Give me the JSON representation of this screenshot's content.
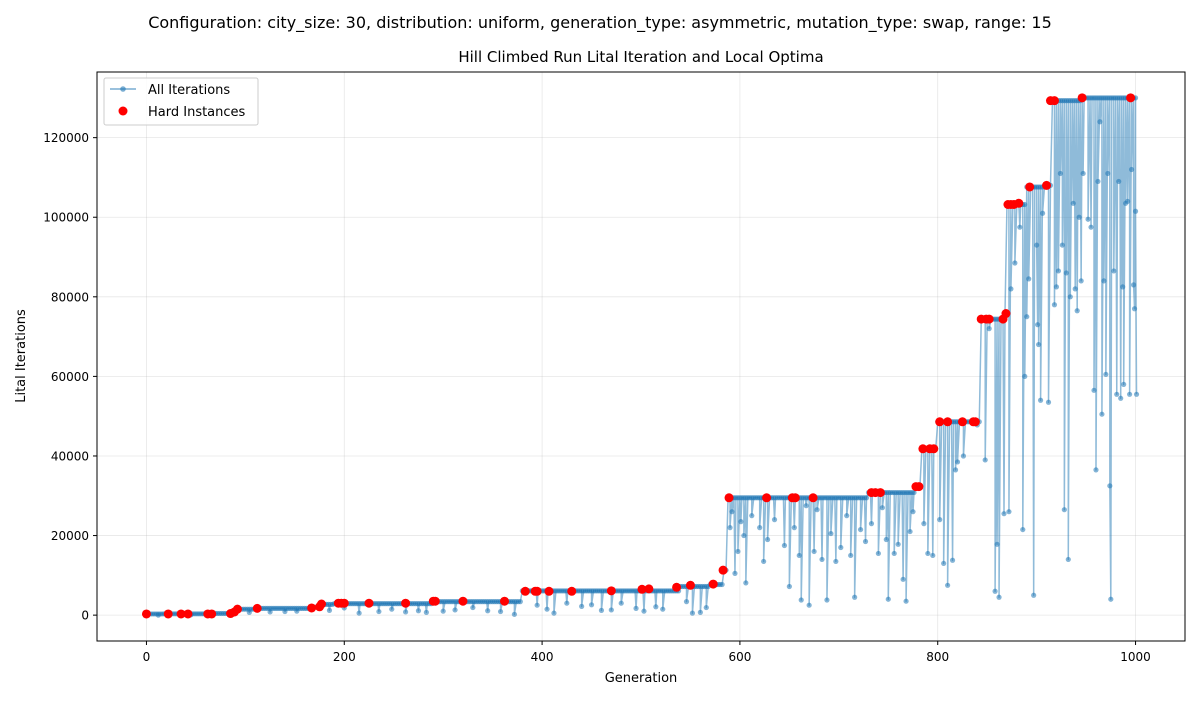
{
  "figure": {
    "suptitle": "Configuration: city_size: 30, distribution: uniform, generation_type: asymmetric, mutation_type: swap, range: 15"
  },
  "chart_data": {
    "type": "line",
    "title": "Hill Climbed Run Lital Iteration and Local Optima",
    "xlabel": "Generation",
    "ylabel": "Lital Iterations",
    "xlim": [
      -50,
      1050
    ],
    "ylim": [
      -6500,
      136500
    ],
    "xticks": [
      0,
      200,
      400,
      600,
      800,
      1000
    ],
    "yticks": [
      0,
      20000,
      40000,
      60000,
      80000,
      100000,
      120000
    ],
    "grid": true,
    "legend_position": "top-left",
    "colors": {
      "line": "#1f77b4",
      "hard": "#ff0000"
    },
    "series": [
      {
        "name": "All Iterations",
        "style": "line-with-markers",
        "plateaus": [
          [
            0,
            18,
            300
          ],
          [
            18,
            60,
            330
          ],
          [
            60,
            85,
            420
          ],
          [
            85,
            92,
            700
          ],
          [
            92,
            110,
            1500
          ],
          [
            110,
            165,
            1700
          ],
          [
            165,
            178,
            2000
          ],
          [
            178,
            190,
            2700
          ],
          [
            190,
            260,
            2900
          ],
          [
            260,
            290,
            2900
          ],
          [
            290,
            380,
            3400
          ],
          [
            380,
            540,
            6100
          ],
          [
            540,
            570,
            7200
          ],
          [
            570,
            583,
            7700
          ],
          [
            583,
            588,
            11300
          ],
          [
            588,
            730,
            29500
          ],
          [
            730,
            778,
            30800
          ],
          [
            778,
            783,
            32300
          ],
          [
            783,
            800,
            41800
          ],
          [
            800,
            843,
            48600
          ],
          [
            843,
            868,
            74400
          ],
          [
            868,
            870,
            75800
          ],
          [
            870,
            890,
            103200
          ],
          [
            890,
            908,
            107600
          ],
          [
            908,
            915,
            108000
          ],
          [
            915,
            945,
            129300
          ],
          [
            945,
            1000,
            130000
          ]
        ],
        "dips": [
          [
            12,
            0
          ],
          [
            45,
            100
          ],
          [
            104,
            700
          ],
          [
            125,
            800
          ],
          [
            140,
            900
          ],
          [
            152,
            1000
          ],
          [
            185,
            1200
          ],
          [
            200,
            1800
          ],
          [
            215,
            500
          ],
          [
            235,
            900
          ],
          [
            248,
            1500
          ],
          [
            262,
            800
          ],
          [
            275,
            1100
          ],
          [
            283,
            700
          ],
          [
            300,
            1000
          ],
          [
            312,
            1300
          ],
          [
            330,
            1900
          ],
          [
            345,
            1100
          ],
          [
            358,
            900
          ],
          [
            372,
            200
          ],
          [
            395,
            2500
          ],
          [
            405,
            1500
          ],
          [
            412,
            500
          ],
          [
            425,
            3000
          ],
          [
            440,
            2200
          ],
          [
            450,
            2600
          ],
          [
            460,
            1200
          ],
          [
            470,
            1300
          ],
          [
            480,
            3000
          ],
          [
            495,
            1700
          ],
          [
            503,
            1000
          ],
          [
            515,
            2100
          ],
          [
            522,
            1500
          ],
          [
            546,
            3400
          ],
          [
            552,
            500
          ],
          [
            560,
            700
          ],
          [
            566,
            1900
          ],
          [
            590,
            22000
          ],
          [
            592,
            26000
          ],
          [
            595,
            10500
          ],
          [
            598,
            16000
          ],
          [
            601,
            23500
          ],
          [
            604,
            20000
          ],
          [
            606,
            8100
          ],
          [
            612,
            25000
          ],
          [
            620,
            22000
          ],
          [
            624,
            13500
          ],
          [
            628,
            19000
          ],
          [
            635,
            24000
          ],
          [
            645,
            17500
          ],
          [
            650,
            7200
          ],
          [
            655,
            22000
          ],
          [
            660,
            15000
          ],
          [
            662,
            3800
          ],
          [
            667,
            27500
          ],
          [
            670,
            2500
          ],
          [
            675,
            16000
          ],
          [
            678,
            26500
          ],
          [
            683,
            14000
          ],
          [
            688,
            3800
          ],
          [
            692,
            20500
          ],
          [
            697,
            13500
          ],
          [
            702,
            17000
          ],
          [
            708,
            25000
          ],
          [
            712,
            15000
          ],
          [
            716,
            4500
          ],
          [
            722,
            21500
          ],
          [
            727,
            18500
          ],
          [
            733,
            23000
          ],
          [
            740,
            15500
          ],
          [
            744,
            27000
          ],
          [
            748,
            19000
          ],
          [
            750,
            4000
          ],
          [
            756,
            15500
          ],
          [
            760,
            17800
          ],
          [
            765,
            9000
          ],
          [
            768,
            3500
          ],
          [
            772,
            21000
          ],
          [
            775,
            26000
          ],
          [
            786,
            23000
          ],
          [
            790,
            15500
          ],
          [
            795,
            15000
          ],
          [
            802,
            24000
          ],
          [
            806,
            13000
          ],
          [
            810,
            7500
          ],
          [
            815,
            13800
          ],
          [
            818,
            36500
          ],
          [
            820,
            38500
          ],
          [
            826,
            40000
          ],
          [
            840,
            47800
          ],
          [
            848,
            39000
          ],
          [
            852,
            72000
          ],
          [
            858,
            6000
          ],
          [
            860,
            17800
          ],
          [
            862,
            4500
          ],
          [
            867,
            25500
          ],
          [
            872,
            26000
          ],
          [
            874,
            82000
          ],
          [
            878,
            88500
          ],
          [
            883,
            97500
          ],
          [
            886,
            21500
          ],
          [
            888,
            60000
          ],
          [
            890,
            75000
          ],
          [
            892,
            84500
          ],
          [
            897,
            5000
          ],
          [
            900,
            93000
          ],
          [
            901,
            73000
          ],
          [
            902,
            68000
          ],
          [
            904,
            54000
          ],
          [
            906,
            101000
          ],
          [
            912,
            53500
          ],
          [
            918,
            78000
          ],
          [
            920,
            82500
          ],
          [
            922,
            86500
          ],
          [
            924,
            111000
          ],
          [
            926,
            93000
          ],
          [
            928,
            26500
          ],
          [
            930,
            86000
          ],
          [
            932,
            14000
          ],
          [
            934,
            80000
          ],
          [
            937,
            103500
          ],
          [
            939,
            82000
          ],
          [
            941,
            76500
          ],
          [
            943,
            100000
          ],
          [
            945,
            84000
          ],
          [
            947,
            111000
          ],
          [
            952,
            99500
          ],
          [
            955,
            97500
          ],
          [
            958,
            56500
          ],
          [
            960,
            36500
          ],
          [
            962,
            109000
          ],
          [
            964,
            124000
          ],
          [
            966,
            50500
          ],
          [
            968,
            84000
          ],
          [
            970,
            60500
          ],
          [
            972,
            111000
          ],
          [
            974,
            32500
          ],
          [
            975,
            4000
          ],
          [
            978,
            86500
          ],
          [
            981,
            55500
          ],
          [
            983,
            109000
          ],
          [
            985,
            54500
          ],
          [
            987,
            82500
          ],
          [
            988,
            58000
          ],
          [
            990,
            103500
          ],
          [
            992,
            104000
          ],
          [
            994,
            55500
          ],
          [
            996,
            112000
          ],
          [
            998,
            83000
          ],
          [
            999,
            77000
          ],
          [
            1000,
            101500
          ],
          [
            1001,
            55500
          ]
        ]
      },
      {
        "name": "Hard Instances",
        "style": "markers",
        "points": [
          [
            0,
            300
          ],
          [
            22,
            300
          ],
          [
            35,
            300
          ],
          [
            42,
            300
          ],
          [
            62,
            300
          ],
          [
            66,
            300
          ],
          [
            85,
            400
          ],
          [
            89,
            800
          ],
          [
            92,
            1500
          ],
          [
            112,
            1700
          ],
          [
            167,
            1800
          ],
          [
            175,
            2100
          ],
          [
            177,
            2800
          ],
          [
            194,
            3000
          ],
          [
            197,
            3000
          ],
          [
            200,
            3000
          ],
          [
            225,
            3000
          ],
          [
            262,
            3000
          ],
          [
            290,
            3500
          ],
          [
            292,
            3500
          ],
          [
            320,
            3500
          ],
          [
            362,
            3500
          ],
          [
            383,
            6000
          ],
          [
            393,
            6000
          ],
          [
            395,
            6000
          ],
          [
            407,
            6000
          ],
          [
            430,
            6000
          ],
          [
            470,
            6100
          ],
          [
            501,
            6500
          ],
          [
            508,
            6600
          ],
          [
            536,
            7000
          ],
          [
            550,
            7500
          ],
          [
            573,
            7800
          ],
          [
            583,
            11300
          ],
          [
            589,
            29500
          ],
          [
            627,
            29500
          ],
          [
            653,
            29500
          ],
          [
            656,
            29500
          ],
          [
            674,
            29500
          ],
          [
            733,
            30800
          ],
          [
            737,
            30800
          ],
          [
            742,
            30800
          ],
          [
            778,
            32300
          ],
          [
            781,
            32300
          ],
          [
            785,
            41800
          ],
          [
            792,
            41800
          ],
          [
            796,
            41800
          ],
          [
            802,
            48600
          ],
          [
            810,
            48600
          ],
          [
            825,
            48600
          ],
          [
            836,
            48600
          ],
          [
            838,
            48600
          ],
          [
            844,
            74400
          ],
          [
            849,
            74400
          ],
          [
            852,
            74400
          ],
          [
            866,
            74400
          ],
          [
            869,
            75800
          ],
          [
            871,
            103200
          ],
          [
            874,
            103200
          ],
          [
            877,
            103200
          ],
          [
            882,
            103500
          ],
          [
            893,
            107600
          ],
          [
            910,
            108000
          ],
          [
            914,
            129300
          ],
          [
            918,
            129300
          ],
          [
            946,
            130000
          ],
          [
            995,
            130000
          ]
        ]
      }
    ]
  }
}
